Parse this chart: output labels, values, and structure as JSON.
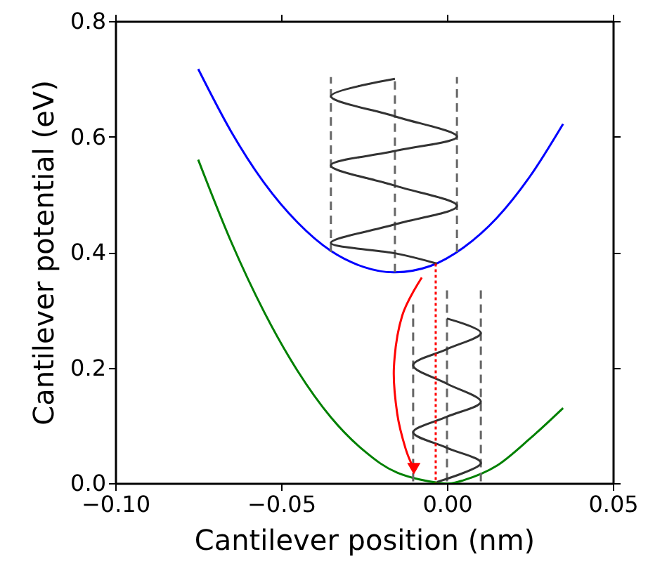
{
  "chart_data": {
    "type": "line",
    "xlabel": "Cantilever position (nm)",
    "ylabel": "Cantilever potential (eV)",
    "xlim": [
      -0.1,
      0.05
    ],
    "ylim": [
      0.0,
      0.8
    ],
    "xticks": [
      {
        "value": -0.1,
        "label": "−0.10"
      },
      {
        "value": -0.05,
        "label": "−0.05"
      },
      {
        "value": 0.0,
        "label": "0.00"
      },
      {
        "value": 0.05,
        "label": "0.05"
      }
    ],
    "yticks": [
      {
        "value": 0.0,
        "label": "0.0"
      },
      {
        "value": 0.2,
        "label": "0.2"
      },
      {
        "value": 0.4,
        "label": "0.4"
      },
      {
        "value": 0.6,
        "label": "0.6"
      },
      {
        "value": 0.8,
        "label": "0.8"
      }
    ],
    "grid": false,
    "series": [
      {
        "color": "#0000ff",
        "line_style": "solid",
        "x": [
          -0.075,
          -0.065,
          -0.055,
          -0.045,
          -0.035,
          -0.025,
          -0.0157,
          -0.005,
          0.005,
          0.015,
          0.025,
          0.035
        ],
        "values": [
          0.717,
          0.608,
          0.519,
          0.451,
          0.402,
          0.374,
          0.365,
          0.376,
          0.408,
          0.459,
          0.531,
          0.622
        ]
      },
      {
        "color": "#008000",
        "line_style": "solid",
        "x": [
          -0.075,
          -0.065,
          -0.055,
          -0.045,
          -0.035,
          -0.025,
          -0.015,
          -0.002,
          0.005,
          0.015,
          0.025,
          0.035
        ],
        "values": [
          0.56,
          0.417,
          0.295,
          0.194,
          0.114,
          0.056,
          0.018,
          0.0,
          0.005,
          0.03,
          0.077,
          0.13
        ]
      },
      {
        "color": "#666666",
        "line_style": "dashed",
        "x": [
          -0.035,
          -0.035
        ],
        "values": [
          0.4,
          0.703
        ]
      },
      {
        "color": "#666666",
        "line_style": "dashed",
        "x": [
          -0.0157,
          -0.0157
        ],
        "values": [
          0.365,
          0.703
        ]
      },
      {
        "color": "#666666",
        "line_style": "dashed",
        "x": [
          0.003,
          0.003
        ],
        "values": [
          0.4,
          0.703
        ]
      },
      {
        "color": "#666666",
        "line_style": "dashed",
        "x": [
          -0.0102,
          -0.0102
        ],
        "values": [
          0.003,
          0.318
        ]
      },
      {
        "color": "#666666",
        "line_style": "dashed",
        "x": [
          0.0,
          0.0
        ],
        "values": [
          0.003,
          0.334
        ]
      },
      {
        "color": "#666666",
        "line_style": "dashed",
        "x": [
          0.0102,
          0.0102
        ],
        "values": [
          0.003,
          0.334
        ]
      },
      {
        "color": "#333333",
        "line_style": "solid",
        "x": [
          -0.003,
          -0.0157,
          -0.035,
          -0.0157,
          0.003,
          -0.0157,
          -0.035,
          -0.0157,
          0.003,
          -0.0157,
          -0.035,
          -0.0157
        ],
        "values": [
          0.38,
          0.398,
          0.416,
          0.448,
          0.48,
          0.515,
          0.55,
          0.575,
          0.6,
          0.635,
          0.67,
          0.7
        ]
      },
      {
        "color": "#333333",
        "line_style": "solid",
        "x": [
          -0.003,
          0.0102,
          0.0,
          -0.0102,
          0.0,
          0.0102,
          0.0,
          -0.0102,
          0.0,
          0.0102,
          0.0
        ],
        "values": [
          0.002,
          0.034,
          0.061,
          0.088,
          0.115,
          0.141,
          0.172,
          0.204,
          0.232,
          0.26,
          0.285
        ]
      },
      {
        "color": "#ff0000",
        "line_style": "dotted",
        "x": [
          -0.0034,
          -0.0034
        ],
        "values": [
          0.38,
          0.0
        ]
      }
    ]
  }
}
